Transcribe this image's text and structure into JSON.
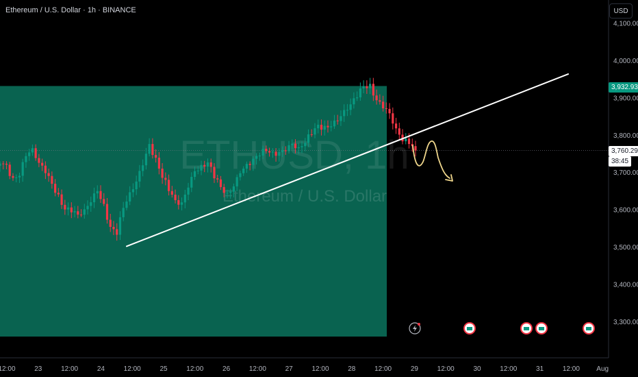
{
  "header": {
    "symbol_title": "Ethereum / U.S. Dollar · 1h · BINANCE",
    "currency_button": "USD"
  },
  "watermark": {
    "ticker": "ETHUSD, 1h",
    "name": "Ethereum / U.S. Dollar"
  },
  "price_tags": {
    "session_high": "3,932.93",
    "last_price": "3,760.29",
    "countdown": "38:45"
  },
  "colors": {
    "background": "#000000",
    "up_candle": "#089981",
    "down_candle": "#f23645",
    "zone_fill": "#0a6b57",
    "trendline": "#ffffff",
    "projection": "#f0d78c"
  },
  "icons": [
    "lightning-icon",
    "earnings-icon"
  ],
  "chart_data": {
    "type": "candlestick",
    "title": "Ethereum / U.S. Dollar · 1h · BINANCE",
    "ylim": [
      3260,
      4130
    ],
    "y_ticks": [
      "3,300.00",
      "3,400.00",
      "3,500.00",
      "3,600.00",
      "3,700.00",
      "3,800.00",
      "3,900.00",
      "4,000.00",
      "4,100.00"
    ],
    "x_ticks": [
      "12:00",
      "23",
      "12:00",
      "24",
      "12:00",
      "25",
      "12:00",
      "26",
      "12:00",
      "27",
      "12:00",
      "28",
      "12:00",
      "29",
      "12:00",
      "30",
      "12:00",
      "31",
      "12:00",
      "Aug"
    ],
    "last_price": 3760.29,
    "session_high": 3932.93,
    "grid": false,
    "legend": "none",
    "series": [
      {
        "name": "Ethereum / U.S. Dollar",
        "ohlc_anchor_closes": [
          3720,
          3710,
          3690,
          3705,
          3745,
          3760,
          3730,
          3700,
          3660,
          3640,
          3615,
          3600,
          3580,
          3600,
          3625,
          3645,
          3610,
          3565,
          3545,
          3600,
          3640,
          3680,
          3720,
          3770,
          3745,
          3700,
          3650,
          3615,
          3620,
          3665,
          3700,
          3720,
          3740,
          3690,
          3650,
          3640,
          3670,
          3700,
          3720,
          3745,
          3755,
          3750,
          3745,
          3760,
          3765,
          3775,
          3770,
          3790,
          3800,
          3815,
          3825,
          3835,
          3840,
          3865,
          3890,
          3905,
          3920,
          3932,
          3905,
          3880,
          3855,
          3820,
          3790,
          3770,
          3760
        ]
      }
    ],
    "annotations": {
      "highlight_zone": {
        "price_top": 3932.93,
        "price_bottom": 3260
      },
      "trendline": {
        "from_price": 3503,
        "to_price": 3965
      },
      "projection_path": "down"
    }
  }
}
